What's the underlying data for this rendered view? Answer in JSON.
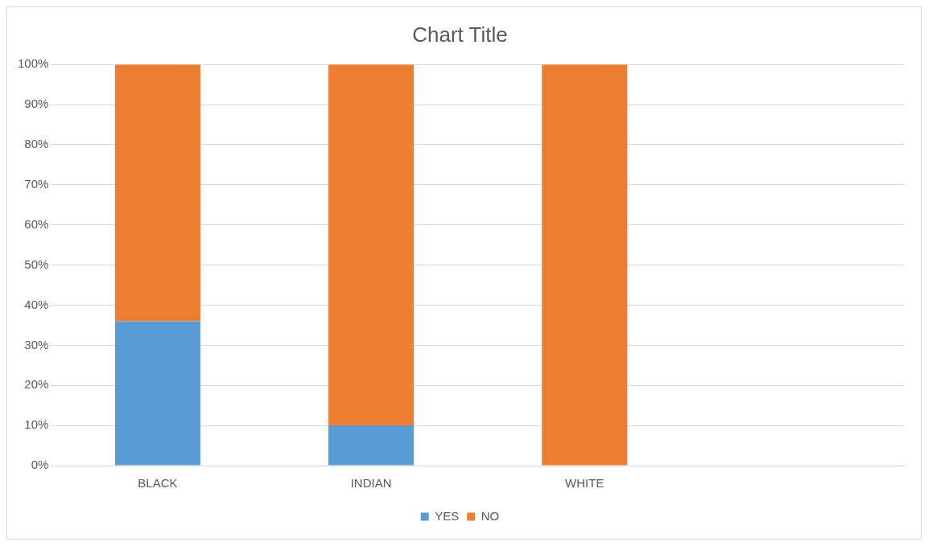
{
  "chart_data": {
    "type": "bar",
    "title": "Chart Title",
    "categories": [
      "BLACK",
      "INDIAN",
      "WHITE",
      null
    ],
    "stacked": true,
    "series": [
      {
        "name": "YES",
        "color": "#5b9bd5",
        "values": [
          36,
          10,
          0,
          null
        ]
      },
      {
        "name": "NO",
        "color": "#ed7d31",
        "values": [
          64,
          90,
          100,
          null
        ]
      }
    ],
    "ylim": [
      0,
      100
    ],
    "yticks": [
      {
        "value": 0,
        "label": "0%"
      },
      {
        "value": 10,
        "label": "10%"
      },
      {
        "value": 20,
        "label": "20%"
      },
      {
        "value": 30,
        "label": "30%"
      },
      {
        "value": 40,
        "label": "40%"
      },
      {
        "value": 50,
        "label": "50%"
      },
      {
        "value": 60,
        "label": "60%"
      },
      {
        "value": 70,
        "label": "70%"
      },
      {
        "value": 80,
        "label": "80%"
      },
      {
        "value": 90,
        "label": "90%"
      },
      {
        "value": 100,
        "label": "100%"
      }
    ],
    "grid": "y",
    "legend": "bottom"
  }
}
